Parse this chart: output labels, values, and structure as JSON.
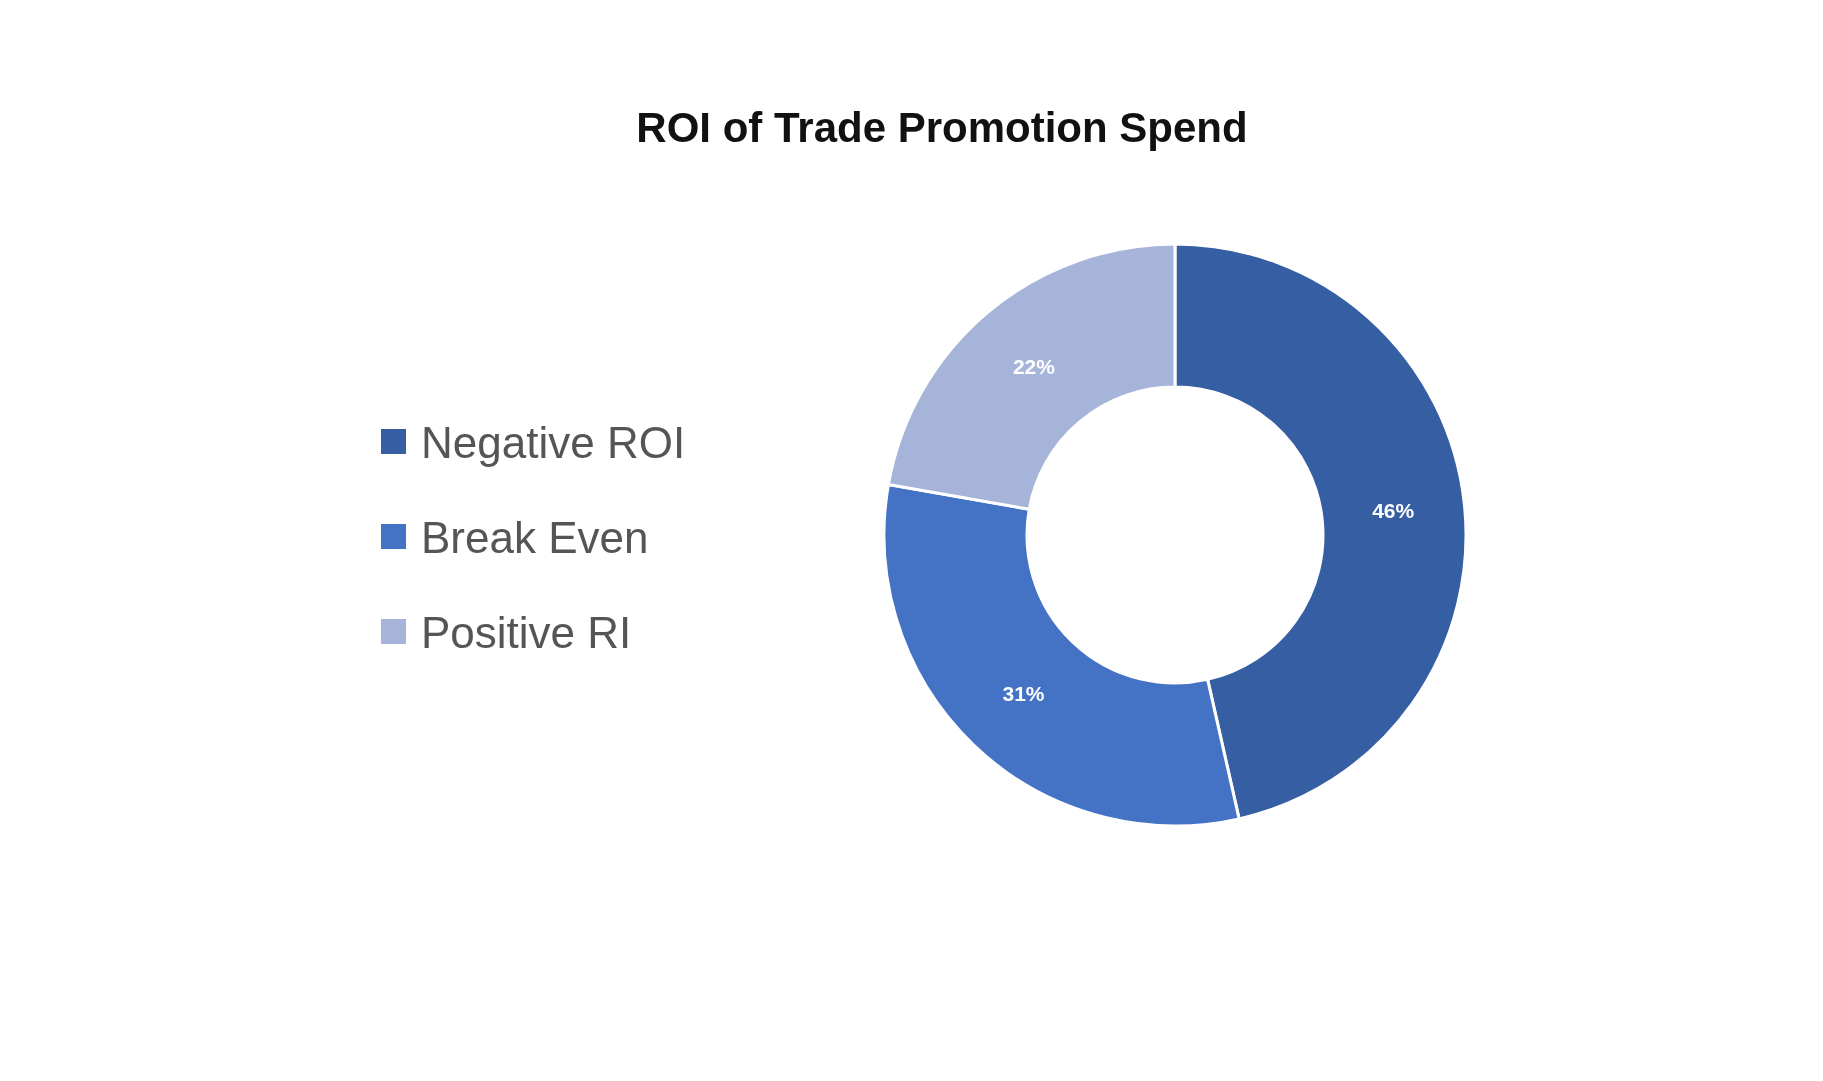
{
  "chart_data": {
    "type": "donut",
    "title": "ROI of Trade Promotion Spend",
    "categories": [
      "Negative ROI",
      "Break Even",
      "Positive RI"
    ],
    "values": [
      46,
      31,
      22
    ],
    "colors": [
      "#365ea2",
      "#4472c4",
      "#a6b4da"
    ],
    "value_labels": [
      "46%",
      "31%",
      "22%"
    ],
    "legend": "left"
  }
}
